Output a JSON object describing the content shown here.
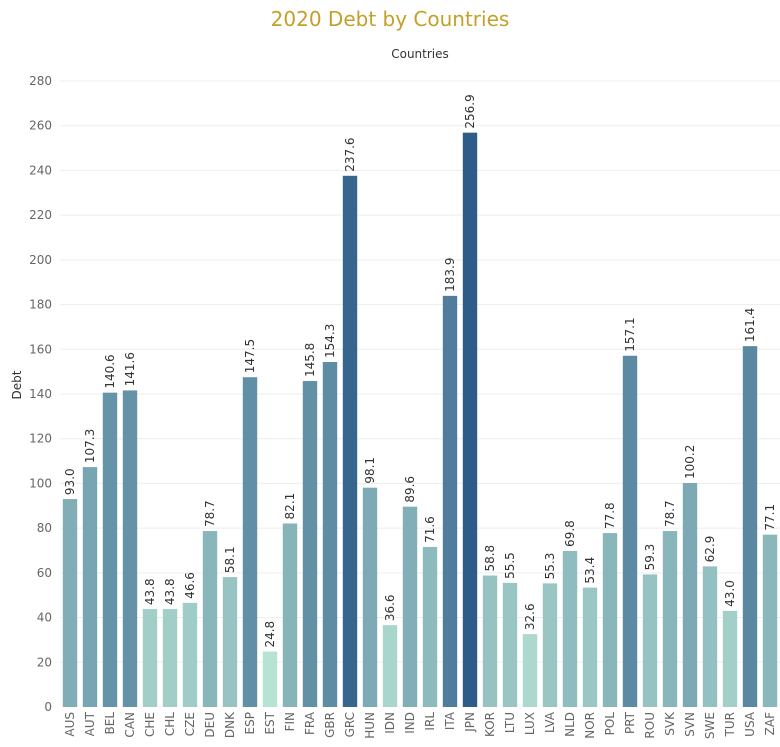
{
  "chart_data": {
    "type": "bar",
    "title": "2020 Debt by Countries",
    "xlabel": "Countries",
    "ylabel": "Debt",
    "ylim": [
      0,
      280
    ],
    "yticks": [
      0,
      20,
      40,
      60,
      80,
      100,
      120,
      140,
      160,
      180,
      200,
      220,
      240,
      260,
      280
    ],
    "grid": true,
    "color_scale": {
      "low": "#b7e3d4",
      "high": "#2d5c88"
    },
    "categories": [
      "AUS",
      "AUT",
      "BEL",
      "CAN",
      "CHE",
      "CHL",
      "CZE",
      "DEU",
      "DNK",
      "ESP",
      "EST",
      "FIN",
      "FRA",
      "GBR",
      "GRC",
      "HUN",
      "IDN",
      "IND",
      "IRL",
      "ITA",
      "JPN",
      "KOR",
      "LTU",
      "LUX",
      "LVA",
      "NLD",
      "NOR",
      "POL",
      "PRT",
      "ROU",
      "SVK",
      "SVN",
      "SWE",
      "TUR",
      "USA",
      "ZAF"
    ],
    "values": [
      93.0,
      107.3,
      140.6,
      141.6,
      43.8,
      43.8,
      46.6,
      78.7,
      58.1,
      147.5,
      24.8,
      82.1,
      145.8,
      154.3,
      237.6,
      98.1,
      36.6,
      89.6,
      71.6,
      183.9,
      256.9,
      58.8,
      55.5,
      32.6,
      55.3,
      69.8,
      53.4,
      77.8,
      157.1,
      59.3,
      78.7,
      100.2,
      62.9,
      43.0,
      161.4,
      77.1
    ],
    "data_labels": [
      "93.0",
      "107.3",
      "140.6",
      "141.6",
      "43.8",
      "43.8",
      "46.6",
      "78.7",
      "58.1",
      "147.5",
      "24.8",
      "82.1",
      "145.8",
      "154.3",
      "237.6",
      "98.1",
      "36.6",
      "89.6",
      "71.6",
      "183.9",
      "256.9",
      "58.8",
      "55.5",
      "32.6",
      "55.3",
      "69.8",
      "53.4",
      "77.8",
      "157.1",
      "59.3",
      "78.7",
      "100.2",
      "62.9",
      "43.0",
      "161.4",
      "77.1"
    ]
  }
}
